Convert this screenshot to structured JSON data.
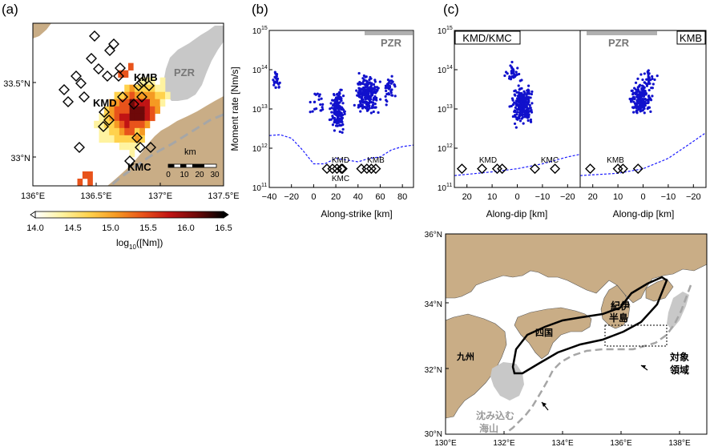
{
  "panel_a": {
    "letter": "(a)",
    "x_ticks": [
      "136°E",
      "136.5°E",
      "137°E",
      "137.5°E"
    ],
    "y_ticks": [
      "33.5°N",
      "33°N"
    ],
    "labels": {
      "pzr": "PZR",
      "kmb": "KMB",
      "kmd": "KMD",
      "kmc": "KMC"
    },
    "scale": {
      "unit": "km",
      "ticks": [
        "0",
        "10",
        "20",
        "30"
      ]
    },
    "colorbar": {
      "ticks": [
        "14.0",
        "14.5",
        "15.0",
        "15.5",
        "16.0",
        "16.5"
      ],
      "label_main": "log",
      "label_sub": "10",
      "label_rest": "([Nm])",
      "colors": [
        "#ffffff",
        "#fff3a0",
        "#ffd24d",
        "#f59a23",
        "#e8531b",
        "#c01414",
        "#6e0909",
        "#000000"
      ]
    }
  },
  "panel_b": {
    "letter": "(b)",
    "pzr": "PZR",
    "x_ticks": [
      "−40",
      "−20",
      "0",
      "20",
      "40",
      "60",
      "80"
    ],
    "x_label": "Along-strike [km]",
    "y_ticks": {
      "base": "10",
      "exps": [
        "15",
        "14",
        "13",
        "12",
        "11"
      ]
    },
    "y_label": "Moment rate [Nm/s]",
    "stations": {
      "kmd": "KMD",
      "kmc": "KMC",
      "kmb": "KMB"
    }
  },
  "panel_c": {
    "letter": "(c)",
    "left_title": "KMD/KMC",
    "right_title": "KMB",
    "pzr": "PZR",
    "x_ticks": [
      "20",
      "10",
      "0",
      "−10",
      "−20"
    ],
    "x_label": "Along-dip [km]",
    "y_ticks": {
      "base": "10",
      "exps": [
        "15",
        "14",
        "13",
        "12",
        "11"
      ]
    },
    "stations_left": {
      "kmd": "KMD",
      "kmc": "KMC"
    },
    "stations_right": {
      "kmb": "KMB"
    }
  },
  "panel_d": {
    "x_ticks": [
      "130°E",
      "132°E",
      "134°E",
      "136°E",
      "138°E"
    ],
    "y_ticks": [
      "36°N",
      "34°N",
      "32°N",
      "30°N"
    ],
    "labels": {
      "kii_1": "紀伊",
      "kii_2": "半島",
      "shikoku": "四国",
      "kyushu": "九州",
      "target_1": "対象",
      "target_2": "領域",
      "seamount_1": "沈み込む",
      "seamount_2": "海山"
    },
    "colors": {
      "land": "#c9ad86",
      "seamount": "#c8c8c8",
      "trough": "#a6a6a6"
    }
  },
  "chart_data": [
    {
      "panel": "a",
      "type": "heatmap",
      "xlabel": "",
      "ylabel": "",
      "xlim": [
        136.0,
        137.5
      ],
      "ylim": [
        32.85,
        33.75
      ],
      "colorbar_label": "log10([Nm])",
      "colorbar_range": [
        14.0,
        16.5
      ],
      "stations": [
        "KMB",
        "KMD",
        "KMC"
      ],
      "regions": [
        "PZR"
      ]
    },
    {
      "panel": "b",
      "type": "scatter",
      "xlabel": "Along-strike [km]",
      "ylabel": "Moment rate [Nm/s]",
      "xlim": [
        -40,
        90
      ],
      "ylim": [
        100000000000.0,
        1000000000000000.0
      ],
      "y_scale": "log",
      "detection_limit_curve": [
        [
          -40,
          2100000000000.0
        ],
        [
          -30,
          2200000000000.0
        ],
        [
          -20,
          1800000000000.0
        ],
        [
          -10,
          900000000000.0
        ],
        [
          0,
          400000000000.0
        ],
        [
          10,
          400000000000.0
        ],
        [
          20,
          550000000000.0
        ],
        [
          30,
          500000000000.0
        ],
        [
          40,
          450000000000.0
        ],
        [
          50,
          550000000000.0
        ],
        [
          60,
          600000000000.0
        ],
        [
          70,
          900000000000.0
        ],
        [
          80,
          1100000000000.0
        ],
        [
          90,
          1200000000000.0
        ]
      ],
      "station_markers": [
        {
          "name": "KMD",
          "x": [
            13,
            17,
            20
          ]
        },
        {
          "name": "KMC",
          "x": [
            24,
            25
          ]
        },
        {
          "name": "KMB",
          "x": [
            43,
            48,
            52,
            56
          ]
        }
      ]
    },
    {
      "panel": "c-left",
      "type": "scatter",
      "title": "KMD/KMC",
      "xlabel": "Along-dip [km]",
      "ylabel": "",
      "xlim": [
        25,
        -25
      ],
      "ylim": [
        100000000000.0,
        1000000000000000.0
      ],
      "y_scale": "log",
      "detection_limit_curve": [
        [
          25,
          200000000000.0
        ],
        [
          10,
          250000000000.0
        ],
        [
          0,
          300000000000.0
        ],
        [
          -10,
          400000000000.0
        ],
        [
          -20,
          600000000000.0
        ],
        [
          -25,
          700000000000.0
        ]
      ],
      "station_markers": [
        {
          "name": "KMD",
          "x": [
            22,
            14,
            8,
            6
          ]
        },
        {
          "name": "KMC",
          "x": [
            -7,
            -15
          ]
        }
      ]
    },
    {
      "panel": "c-right",
      "type": "scatter",
      "title": "KMB",
      "xlabel": "Along-dip [km]",
      "ylabel": "",
      "xlim": [
        25,
        -25
      ],
      "ylim": [
        100000000000.0,
        1000000000000000.0
      ],
      "y_scale": "log",
      "detection_limit_curve": [
        [
          25,
          200000000000.0
        ],
        [
          10,
          230000000000.0
        ],
        [
          0,
          300000000000.0
        ],
        [
          -10,
          550000000000.0
        ],
        [
          -20,
          1500000000000.0
        ],
        [
          -25,
          2500000000000.0
        ]
      ],
      "station_markers": [
        {
          "name": "KMB",
          "x": [
            21,
            10,
            8,
            2
          ]
        }
      ]
    }
  ]
}
